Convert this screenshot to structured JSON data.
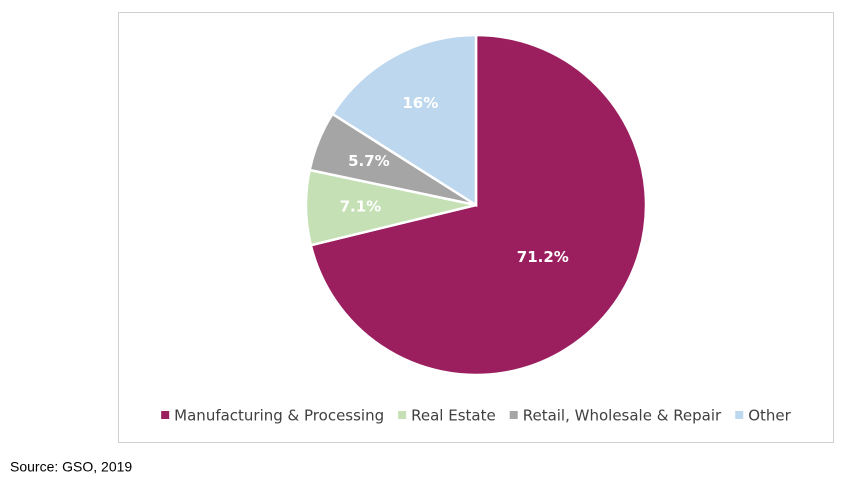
{
  "chart_data": {
    "type": "pie",
    "categories": [
      "Manufacturing & Processing",
      "Real Estate",
      "Retail, Wholesale & Repair",
      "Other"
    ],
    "values": [
      71.2,
      7.1,
      5.7,
      16
    ],
    "value_labels": [
      "71.2%",
      "7.1%",
      "5.7%",
      "16%"
    ],
    "colors": [
      "#9b1f5e",
      "#c5e0b4",
      "#a5a5a5",
      "#bdd7ee"
    ],
    "legend": "bottom",
    "source": "Source: GSO, 2019"
  }
}
